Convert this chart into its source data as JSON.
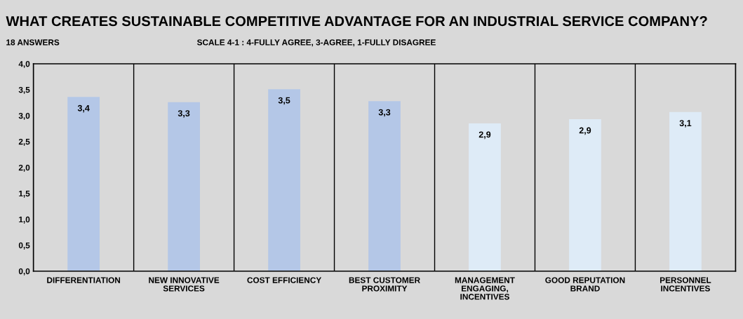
{
  "chart_data": {
    "type": "bar",
    "title": "WHAT CREATES SUSTAINABLE COMPETITIVE ADVANTAGE FOR AN INDUSTRIAL SERVICE COMPANY?",
    "subtitle": "18 ANSWERS",
    "annotations": [
      "SCALE 4-1 : 4-FULLY AGREE, 3-AGREE, 1-FULLY DISAGREE"
    ],
    "categories": [
      "DIFFERENTIATION",
      "NEW INNOVATIVE\nSERVICES",
      "COST EFFICIENCY",
      "BEST CUSTOMER\nPROXIMITY",
      "MANAGEMENT\nENGAGING,\nINCENTIVES",
      "GOOD REPUTATION\nBRAND",
      "PERSONNEL\nINCENTIVES"
    ],
    "values": [
      3.36,
      3.26,
      3.51,
      3.28,
      2.85,
      2.93,
      3.07
    ],
    "value_labels": [
      "3,4",
      "3,3",
      "3,5",
      "3,3",
      "2,9",
      "2,9",
      "3,1"
    ],
    "colors": [
      "#b4c7e7",
      "#b4c7e7",
      "#b4c7e7",
      "#b4c7e7",
      "#deebf7",
      "#deebf7",
      "#deebf7"
    ],
    "ylim": [
      0,
      4
    ],
    "yticks": [
      {
        "value": 0,
        "label": "0,0"
      },
      {
        "value": 0.5,
        "label": "0,5"
      },
      {
        "value": 1,
        "label": "1,0"
      },
      {
        "value": 1.5,
        "label": "1,5"
      },
      {
        "value": 2,
        "label": "2,0"
      },
      {
        "value": 2.5,
        "label": "2,5"
      },
      {
        "value": 3,
        "label": "3,0"
      },
      {
        "value": 3.5,
        "label": "3,5"
      },
      {
        "value": 4,
        "label": "4,0"
      }
    ],
    "grid": "x"
  }
}
